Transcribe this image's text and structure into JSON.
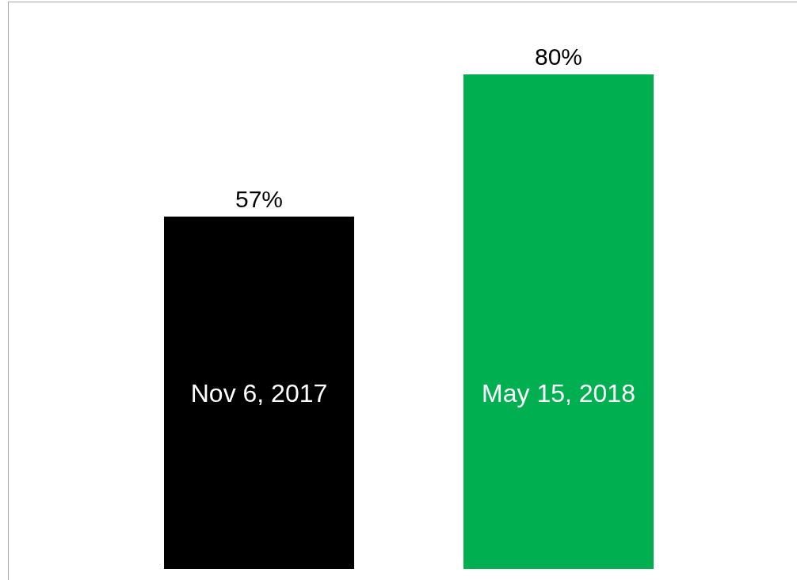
{
  "chart_data": {
    "type": "bar",
    "categories": [
      "Nov 6, 2017",
      "May 15, 2018"
    ],
    "values": [
      57,
      80
    ],
    "colors": [
      "#000000",
      "#00b050"
    ],
    "value_labels": [
      "57%",
      "80%"
    ]
  }
}
